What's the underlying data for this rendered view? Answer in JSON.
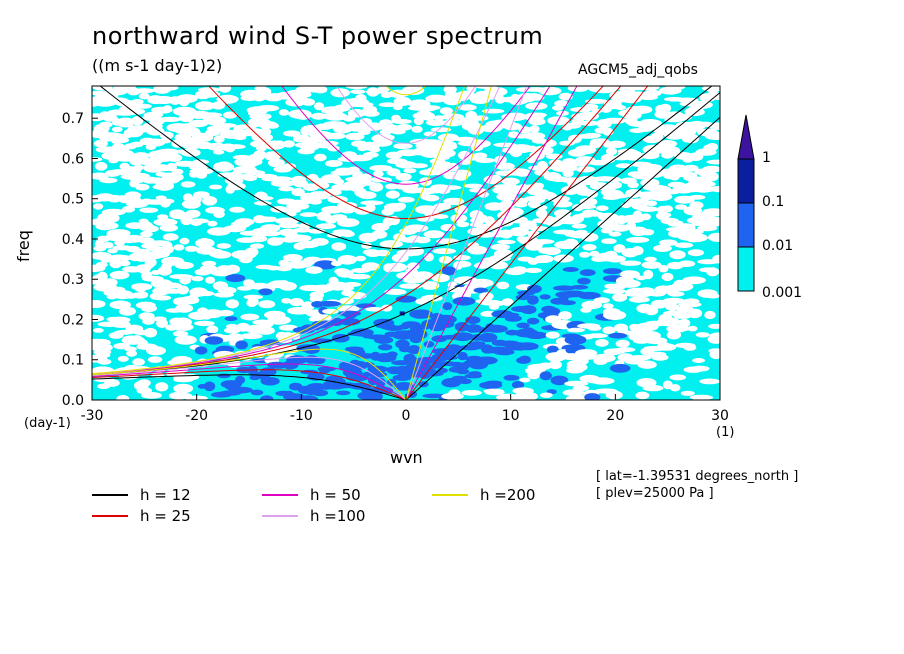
{
  "chart_data": {
    "type": "heatmap",
    "title": "northward wind S-T power spectrum",
    "units": "((m s-1 day-1)2)",
    "dataset": "AGCM5_adj_qobs",
    "xlabel": "wvn",
    "ylabel": "freq",
    "x_unit_left": "(day-1)",
    "x_unit_right": "(1)",
    "xlim": [
      -30,
      30
    ],
    "ylim": [
      0,
      0.78
    ],
    "x_ticks": [
      -30,
      -20,
      -10,
      0,
      10,
      20,
      30
    ],
    "x_tick_labels": [
      "-30",
      "-20",
      "-10",
      "0",
      "10",
      "20",
      "30"
    ],
    "y_ticks": [
      0,
      0.1,
      0.2,
      0.3,
      0.4,
      0.5,
      0.6,
      0.7
    ],
    "y_tick_labels": [
      "0.0",
      "0.1",
      "0.2",
      "0.3",
      "0.4",
      "0.5",
      "0.6",
      "0.7"
    ],
    "colorbar": {
      "levels": [
        0.001,
        0.01,
        0.1,
        1
      ],
      "labels": [
        "0.001",
        "0.01",
        "0.1",
        "1"
      ],
      "colors": [
        "#00f0f0",
        "#1e64f0",
        "#0a1ea0",
        "#3c14a0"
      ]
    },
    "dispersion_curves": [
      {
        "h": 12,
        "label": "h = 12",
        "color": "#000000"
      },
      {
        "h": 25,
        "label": "h = 25",
        "color": "#e00000"
      },
      {
        "h": 50,
        "label": "h = 50",
        "color": "#e000c0"
      },
      {
        "h": 100,
        "label": "h =100",
        "color": "#e0a0f0"
      },
      {
        "h": 200,
        "label": "h =200",
        "color": "#e0e000"
      }
    ],
    "annotations": [
      "[ lat=-1.39531 degrees_north ]",
      "[ plev=25000 Pa ]"
    ]
  }
}
